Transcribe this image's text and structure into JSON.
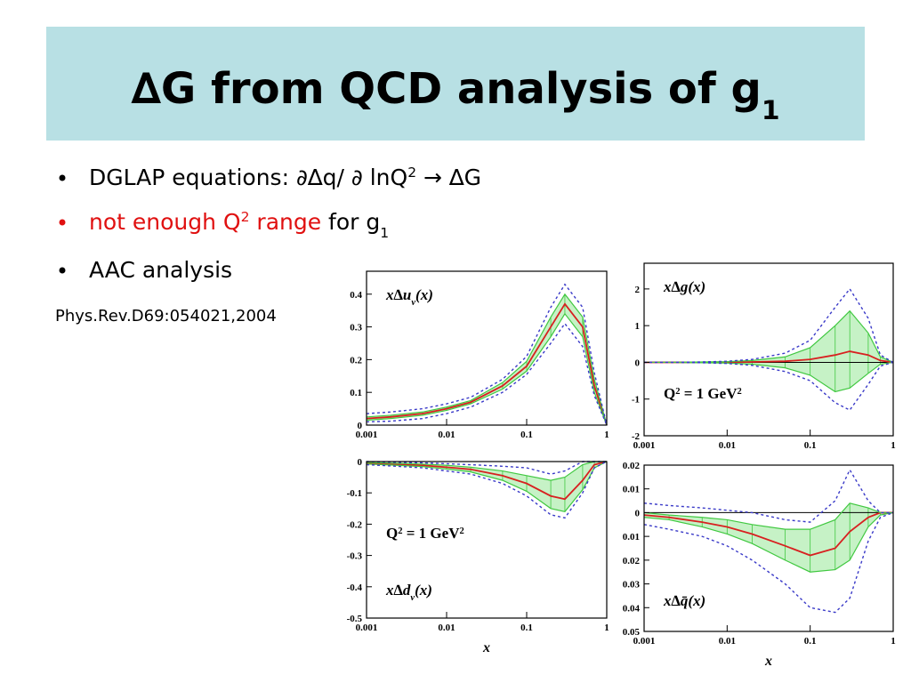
{
  "title": [
    {
      "text": "∆G from QCD analysis of g"
    },
    {
      "text": "1",
      "style": "sub"
    }
  ],
  "bullets": [
    {
      "color": "#000000",
      "parts": [
        {
          "text": "DGLAP equations: ∂∆q/ ∂ lnQ"
        },
        {
          "text": "2",
          "style": "sup"
        },
        {
          "text": " → ∆G"
        }
      ]
    },
    {
      "color": "#e01010",
      "parts": [
        {
          "text": "not enough Q",
          "color": "#e01010"
        },
        {
          "text": "2",
          "style": "sup",
          "color": "#e01010"
        },
        {
          "text": " range",
          "color": "#e01010"
        },
        {
          "text": " for g"
        },
        {
          "text": "1",
          "style": "sub"
        }
      ]
    },
    {
      "color": "#000000",
      "parts": [
        {
          "text": "AAC analysis"
        }
      ]
    }
  ],
  "reference": "Phys.Rev.D69:054021,2004",
  "chart_data": [
    {
      "type": "line",
      "log_x": true,
      "band_fill": "#c6f2c6",
      "label": [
        {
          "text": "x∆u"
        },
        {
          "text": "v",
          "style": "sub"
        },
        {
          "text": "(x)"
        }
      ],
      "x": [
        0.001,
        0.002,
        0.005,
        0.01,
        0.02,
        0.05,
        0.1,
        0.2,
        0.3,
        0.5,
        0.7,
        1
      ],
      "xlim": [
        0.001,
        1
      ],
      "xticks": [
        0.001,
        0.01,
        0.1,
        1
      ],
      "ylim": [
        0,
        0.47
      ],
      "yticks": [
        0,
        0.1,
        0.2,
        0.3,
        0.4
      ],
      "series": [
        {
          "color": "#d82020",
          "values": [
            0.02,
            0.025,
            0.035,
            0.05,
            0.07,
            0.12,
            0.18,
            0.3,
            0.37,
            0.3,
            0.12,
            0
          ]
        },
        {
          "color": "#40c840",
          "band": true,
          "values": [
            0.025,
            0.03,
            0.04,
            0.055,
            0.075,
            0.13,
            0.195,
            0.33,
            0.4,
            0.33,
            0.14,
            0
          ]
        },
        {
          "color": "#40c840",
          "band": true,
          "values": [
            0.015,
            0.02,
            0.03,
            0.045,
            0.065,
            0.11,
            0.165,
            0.27,
            0.34,
            0.27,
            0.1,
            0
          ]
        },
        {
          "color": "#3a3ac8",
          "dashed": true,
          "values": [
            0.035,
            0.04,
            0.05,
            0.065,
            0.085,
            0.14,
            0.21,
            0.36,
            0.43,
            0.36,
            0.16,
            0
          ]
        },
        {
          "color": "#3a3ac8",
          "dashed": true,
          "values": [
            0.01,
            0.012,
            0.02,
            0.035,
            0.055,
            0.1,
            0.155,
            0.25,
            0.31,
            0.24,
            0.09,
            0
          ]
        }
      ]
    },
    {
      "type": "line",
      "log_x": true,
      "band_fill": "#c6f2c6",
      "label": [
        {
          "text": "x∆g(x)"
        }
      ],
      "annotation": [
        {
          "text": "Q"
        },
        {
          "text": "2",
          "style": "sup"
        },
        {
          "text": " = 1 GeV"
        },
        {
          "text": "2",
          "style": "sup"
        }
      ],
      "x": [
        0.001,
        0.002,
        0.005,
        0.01,
        0.02,
        0.05,
        0.1,
        0.2,
        0.3,
        0.5,
        0.7,
        1
      ],
      "xlim": [
        0.001,
        1
      ],
      "xticks": [
        0.001,
        0.01,
        0.1,
        1
      ],
      "ylim": [
        -2,
        2.7
      ],
      "yticks": [
        -2,
        -1,
        0,
        1,
        2
      ],
      "series": [
        {
          "color": "#d82020",
          "values": [
            0,
            0,
            0,
            0,
            0.01,
            0.03,
            0.08,
            0.2,
            0.3,
            0.2,
            0.05,
            0
          ]
        },
        {
          "color": "#40c840",
          "band": true,
          "values": [
            0,
            0,
            0.01,
            0.02,
            0.05,
            0.15,
            0.4,
            1.0,
            1.4,
            0.8,
            0.15,
            0
          ]
        },
        {
          "color": "#40c840",
          "band": true,
          "values": [
            0,
            0,
            -0.01,
            -0.02,
            -0.05,
            -0.15,
            -0.35,
            -0.8,
            -0.7,
            -0.3,
            -0.05,
            0
          ]
        },
        {
          "color": "#3a3ac8",
          "dashed": true,
          "values": [
            0,
            0,
            0.01,
            0.03,
            0.08,
            0.25,
            0.6,
            1.5,
            2.0,
            1.2,
            0.2,
            0
          ]
        },
        {
          "color": "#3a3ac8",
          "dashed": true,
          "values": [
            0,
            0,
            -0.01,
            -0.03,
            -0.08,
            -0.25,
            -0.5,
            -1.1,
            -1.3,
            -0.6,
            -0.1,
            0
          ]
        }
      ]
    },
    {
      "type": "line",
      "log_x": true,
      "band_fill": "#c6f2c6",
      "label": [
        {
          "text": "x∆d"
        },
        {
          "text": "v",
          "style": "sub"
        },
        {
          "text": "(x)"
        }
      ],
      "annotation": [
        {
          "text": "Q"
        },
        {
          "text": "2",
          "style": "sup"
        },
        {
          "text": " = 1 GeV"
        },
        {
          "text": "2",
          "style": "sup"
        }
      ],
      "xlabel": "x",
      "x": [
        0.001,
        0.002,
        0.005,
        0.01,
        0.02,
        0.05,
        0.1,
        0.2,
        0.3,
        0.5,
        0.7,
        1
      ],
      "xlim": [
        0.001,
        1
      ],
      "xticks": [
        0.001,
        0.01,
        0.1,
        1
      ],
      "ylim": [
        -0.5,
        0
      ],
      "yticks": [
        0,
        -0.1,
        -0.2,
        -0.3,
        -0.4,
        -0.5
      ],
      "series": [
        {
          "color": "#d82020",
          "values": [
            -0.005,
            -0.008,
            -0.012,
            -0.018,
            -0.025,
            -0.045,
            -0.07,
            -0.11,
            -0.12,
            -0.06,
            -0.01,
            0
          ]
        },
        {
          "color": "#40c840",
          "band": true,
          "values": [
            -0.003,
            -0.005,
            -0.008,
            -0.012,
            -0.018,
            -0.03,
            -0.045,
            -0.06,
            -0.05,
            -0.01,
            0,
            0
          ]
        },
        {
          "color": "#40c840",
          "band": true,
          "values": [
            -0.008,
            -0.011,
            -0.016,
            -0.024,
            -0.033,
            -0.06,
            -0.095,
            -0.15,
            -0.16,
            -0.09,
            -0.02,
            0
          ]
        },
        {
          "color": "#3a3ac8",
          "dashed": true,
          "values": [
            0,
            -0.002,
            -0.004,
            -0.007,
            -0.01,
            -0.015,
            -0.02,
            -0.04,
            -0.03,
            0,
            0,
            0
          ]
        },
        {
          "color": "#3a3ac8",
          "dashed": true,
          "values": [
            -0.01,
            -0.014,
            -0.02,
            -0.03,
            -0.04,
            -0.07,
            -0.11,
            -0.17,
            -0.18,
            -0.1,
            -0.02,
            0
          ]
        }
      ]
    },
    {
      "type": "line",
      "log_x": true,
      "band_fill": "#c6f2c6",
      "label": [
        {
          "text": "x∆q̄(x)"
        }
      ],
      "xlabel": "x",
      "x": [
        0.001,
        0.002,
        0.005,
        0.01,
        0.02,
        0.05,
        0.1,
        0.2,
        0.3,
        0.5,
        0.7,
        1
      ],
      "xlim": [
        0.001,
        1
      ],
      "xticks": [
        0.001,
        0.01,
        0.1,
        1
      ],
      "ylim": [
        -0.05,
        0.02
      ],
      "yticks": [
        0.02,
        0.01,
        0,
        {
          "value": -0.01,
          "label": "0.01"
        },
        {
          "value": -0.02,
          "label": "0.02"
        },
        {
          "value": -0.03,
          "label": "0.03"
        },
        {
          "value": -0.04,
          "label": "0.04"
        },
        {
          "value": -0.05,
          "label": "0.05"
        }
      ],
      "series": [
        {
          "color": "#d82020",
          "values": [
            -0.001,
            -0.002,
            -0.004,
            -0.006,
            -0.009,
            -0.014,
            -0.018,
            -0.015,
            -0.008,
            -0.002,
            0,
            0
          ]
        },
        {
          "color": "#40c840",
          "band": true,
          "values": [
            0,
            -0.001,
            -0.002,
            -0.003,
            -0.005,
            -0.007,
            -0.007,
            -0.003,
            0.004,
            0.002,
            0,
            0
          ]
        },
        {
          "color": "#40c840",
          "band": true,
          "values": [
            -0.002,
            -0.003,
            -0.006,
            -0.009,
            -0.013,
            -0.02,
            -0.025,
            -0.024,
            -0.02,
            -0.006,
            -0.001,
            0
          ]
        },
        {
          "color": "#3a3ac8",
          "dashed": true,
          "values": [
            0.004,
            0.003,
            0.002,
            0.001,
            0,
            -0.003,
            -0.004,
            0.005,
            0.018,
            0.005,
            0,
            0
          ]
        },
        {
          "color": "#3a3ac8",
          "dashed": true,
          "values": [
            -0.005,
            -0.007,
            -0.01,
            -0.014,
            -0.02,
            -0.03,
            -0.04,
            -0.042,
            -0.036,
            -0.012,
            -0.002,
            0
          ]
        }
      ]
    }
  ]
}
